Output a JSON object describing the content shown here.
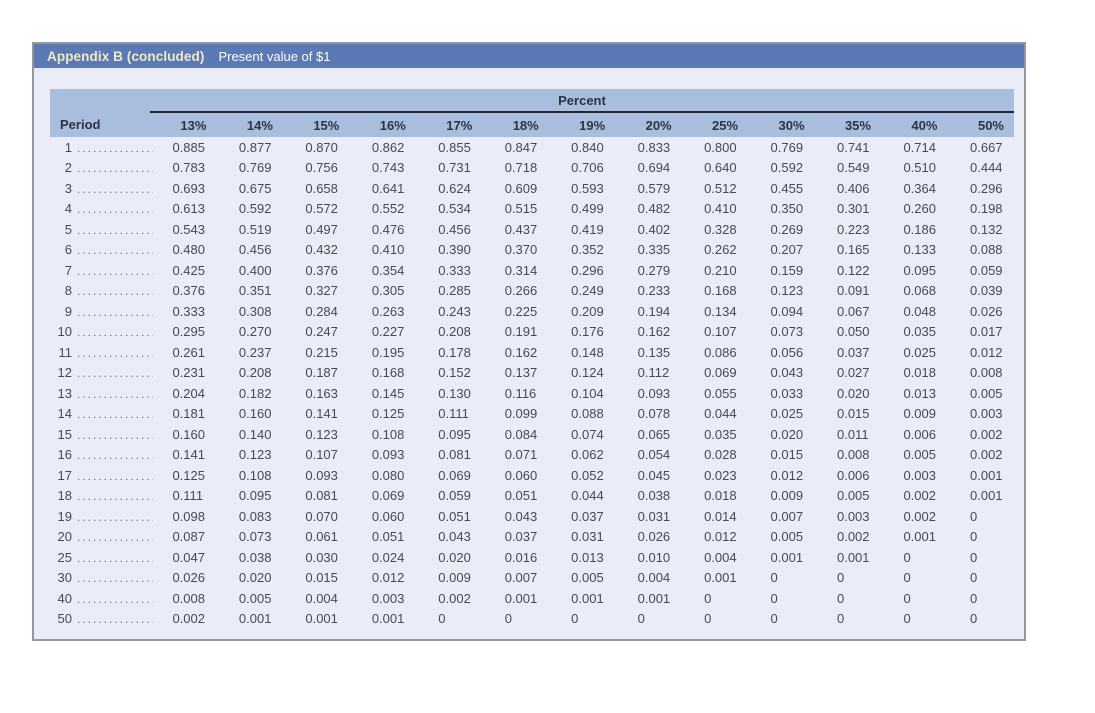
{
  "title_bar": {
    "appendix_label": "Appendix B (concluded)",
    "subtitle": "Present value of $1"
  },
  "table": {
    "group_header": "Percent",
    "period_header": "Period",
    "columns": [
      "13%",
      "14%",
      "15%",
      "16%",
      "17%",
      "18%",
      "19%",
      "20%",
      "25%",
      "30%",
      "35%",
      "40%",
      "50%"
    ],
    "rows": [
      {
        "period": "1",
        "values": [
          "0.885",
          "0.877",
          "0.870",
          "0.862",
          "0.855",
          "0.847",
          "0.840",
          "0.833",
          "0.800",
          "0.769",
          "0.741",
          "0.714",
          "0.667"
        ]
      },
      {
        "period": "2",
        "values": [
          "0.783",
          "0.769",
          "0.756",
          "0.743",
          "0.731",
          "0.718",
          "0.706",
          "0.694",
          "0.640",
          "0.592",
          "0.549",
          "0.510",
          "0.444"
        ]
      },
      {
        "period": "3",
        "values": [
          "0.693",
          "0.675",
          "0.658",
          "0.641",
          "0.624",
          "0.609",
          "0.593",
          "0.579",
          "0.512",
          "0.455",
          "0.406",
          "0.364",
          "0.296"
        ]
      },
      {
        "period": "4",
        "values": [
          "0.613",
          "0.592",
          "0.572",
          "0.552",
          "0.534",
          "0.515",
          "0.499",
          "0.482",
          "0.410",
          "0.350",
          "0.301",
          "0.260",
          "0.198"
        ]
      },
      {
        "period": "5",
        "values": [
          "0.543",
          "0.519",
          "0.497",
          "0.476",
          "0.456",
          "0.437",
          "0.419",
          "0.402",
          "0.328",
          "0.269",
          "0.223",
          "0.186",
          "0.132"
        ]
      },
      {
        "period": "6",
        "values": [
          "0.480",
          "0.456",
          "0.432",
          "0.410",
          "0.390",
          "0.370",
          "0.352",
          "0.335",
          "0.262",
          "0.207",
          "0.165",
          "0.133",
          "0.088"
        ]
      },
      {
        "period": "7",
        "values": [
          "0.425",
          "0.400",
          "0.376",
          "0.354",
          "0.333",
          "0.314",
          "0.296",
          "0.279",
          "0.210",
          "0.159",
          "0.122",
          "0.095",
          "0.059"
        ]
      },
      {
        "period": "8",
        "values": [
          "0.376",
          "0.351",
          "0.327",
          "0.305",
          "0.285",
          "0.266",
          "0.249",
          "0.233",
          "0.168",
          "0.123",
          "0.091",
          "0.068",
          "0.039"
        ]
      },
      {
        "period": "9",
        "values": [
          "0.333",
          "0.308",
          "0.284",
          "0.263",
          "0.243",
          "0.225",
          "0.209",
          "0.194",
          "0.134",
          "0.094",
          "0.067",
          "0.048",
          "0.026"
        ]
      },
      {
        "period": "10",
        "values": [
          "0.295",
          "0.270",
          "0.247",
          "0.227",
          "0.208",
          "0.191",
          "0.176",
          "0.162",
          "0.107",
          "0.073",
          "0.050",
          "0.035",
          "0.017"
        ]
      },
      {
        "period": "11",
        "values": [
          "0.261",
          "0.237",
          "0.215",
          "0.195",
          "0.178",
          "0.162",
          "0.148",
          "0.135",
          "0.086",
          "0.056",
          "0.037",
          "0.025",
          "0.012"
        ]
      },
      {
        "period": "12",
        "values": [
          "0.231",
          "0.208",
          "0.187",
          "0.168",
          "0.152",
          "0.137",
          "0.124",
          "0.112",
          "0.069",
          "0.043",
          "0.027",
          "0.018",
          "0.008"
        ]
      },
      {
        "period": "13",
        "values": [
          "0.204",
          "0.182",
          "0.163",
          "0.145",
          "0.130",
          "0.116",
          "0.104",
          "0.093",
          "0.055",
          "0.033",
          "0.020",
          "0.013",
          "0.005"
        ]
      },
      {
        "period": "14",
        "values": [
          "0.181",
          "0.160",
          "0.141",
          "0.125",
          "0.111",
          "0.099",
          "0.088",
          "0.078",
          "0.044",
          "0.025",
          "0.015",
          "0.009",
          "0.003"
        ]
      },
      {
        "period": "15",
        "values": [
          "0.160",
          "0.140",
          "0.123",
          "0.108",
          "0.095",
          "0.084",
          "0.074",
          "0.065",
          "0.035",
          "0.020",
          "0.011",
          "0.006",
          "0.002"
        ]
      },
      {
        "period": "16",
        "values": [
          "0.141",
          "0.123",
          "0.107",
          "0.093",
          "0.081",
          "0.071",
          "0.062",
          "0.054",
          "0.028",
          "0.015",
          "0.008",
          "0.005",
          "0.002"
        ]
      },
      {
        "period": "17",
        "values": [
          "0.125",
          "0.108",
          "0.093",
          "0.080",
          "0.069",
          "0.060",
          "0.052",
          "0.045",
          "0.023",
          "0.012",
          "0.006",
          "0.003",
          "0.001"
        ]
      },
      {
        "period": "18",
        "values": [
          "0.111",
          "0.095",
          "0.081",
          "0.069",
          "0.059",
          "0.051",
          "0.044",
          "0.038",
          "0.018",
          "0.009",
          "0.005",
          "0.002",
          "0.001"
        ]
      },
      {
        "period": "19",
        "values": [
          "0.098",
          "0.083",
          "0.070",
          "0.060",
          "0.051",
          "0.043",
          "0.037",
          "0.031",
          "0.014",
          "0.007",
          "0.003",
          "0.002",
          "0"
        ]
      },
      {
        "period": "20",
        "values": [
          "0.087",
          "0.073",
          "0.061",
          "0.051",
          "0.043",
          "0.037",
          "0.031",
          "0.026",
          "0.012",
          "0.005",
          "0.002",
          "0.001",
          "0"
        ]
      },
      {
        "period": "25",
        "values": [
          "0.047",
          "0.038",
          "0.030",
          "0.024",
          "0.020",
          "0.016",
          "0.013",
          "0.010",
          "0.004",
          "0.001",
          "0.001",
          "0",
          "0"
        ]
      },
      {
        "period": "30",
        "values": [
          "0.026",
          "0.020",
          "0.015",
          "0.012",
          "0.009",
          "0.007",
          "0.005",
          "0.004",
          "0.001",
          "0",
          "0",
          "0",
          "0"
        ]
      },
      {
        "period": "40",
        "values": [
          "0.008",
          "0.005",
          "0.004",
          "0.003",
          "0.002",
          "0.001",
          "0.001",
          "0.001",
          "0",
          "0",
          "0",
          "0",
          "0"
        ]
      },
      {
        "period": "50",
        "values": [
          "0.002",
          "0.001",
          "0.001",
          "0.001",
          "0",
          "0",
          "0",
          "0",
          "0",
          "0",
          "0",
          "0",
          "0"
        ]
      }
    ]
  },
  "colors": {
    "title_bar_bg": "#5a79b5",
    "title_accent_text": "#f2e9bd",
    "title_subtitle_text": "#ffffff",
    "header_band_bg": "#a9bdde",
    "panel_bg": "#eaedf7",
    "panel_border": "#94979e",
    "body_text": "#454a54",
    "header_text": "#2e3440"
  }
}
